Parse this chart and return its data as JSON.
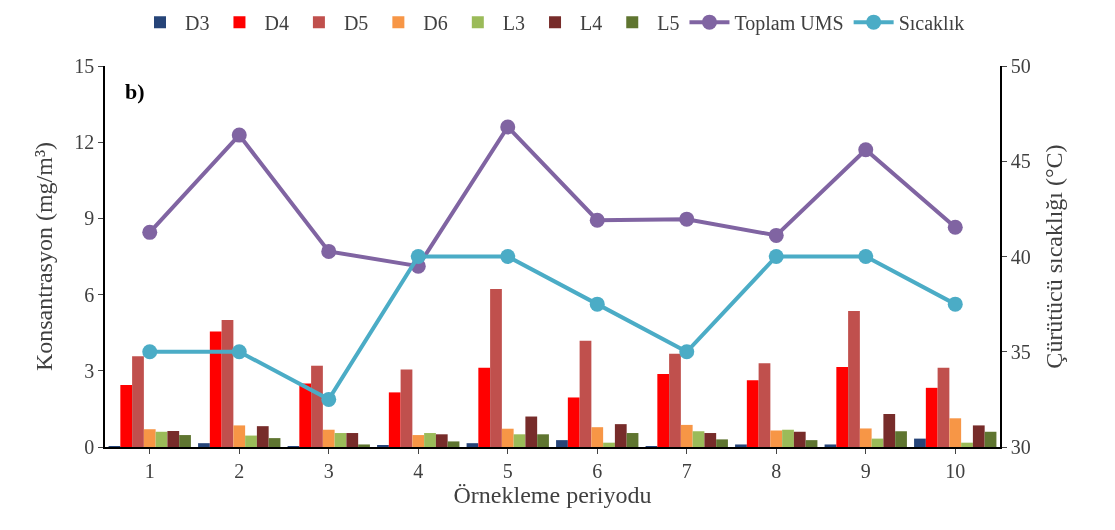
{
  "chart_data": {
    "type": "bar",
    "xlabel": "Örnekleme periyodu",
    "ylabel": "Konsantrasyon (mg/m³)",
    "y2label": "Çürütücü sıcaklığı (°C)",
    "annotations": [
      "b)"
    ],
    "categories": [
      "1",
      "2",
      "3",
      "4",
      "5",
      "6",
      "7",
      "8",
      "9",
      "10"
    ],
    "ylim": [
      0,
      15
    ],
    "yticks": [
      0,
      3,
      6,
      9,
      12,
      15
    ],
    "y2lim": [
      30,
      50
    ],
    "y2ticks": [
      30,
      35,
      40,
      45,
      50
    ],
    "legend": "top",
    "marker": "circle",
    "series": [
      {
        "name": "D3",
        "color": "#264478",
        "values": [
          0.02,
          0.15,
          0.02,
          0.06,
          0.15,
          0.27,
          0.01,
          0.1,
          0.1,
          0.33
        ]
      },
      {
        "name": "D4",
        "color": "#ff0000",
        "values": [
          2.44,
          4.55,
          2.5,
          2.15,
          3.12,
          1.95,
          2.87,
          2.63,
          3.15,
          2.33
        ]
      },
      {
        "name": "D5",
        "color": "#c0504d",
        "values": [
          3.57,
          5.0,
          3.2,
          3.05,
          6.22,
          4.18,
          3.67,
          3.3,
          5.35,
          3.12
        ]
      },
      {
        "name": "D6",
        "color": "#f79646",
        "values": [
          0.7,
          0.85,
          0.68,
          0.47,
          0.72,
          0.78,
          0.87,
          0.65,
          0.73,
          1.13
        ]
      },
      {
        "name": "L3",
        "color": "#9bbb59",
        "values": [
          0.6,
          0.45,
          0.55,
          0.55,
          0.5,
          0.17,
          0.62,
          0.68,
          0.33,
          0.17
        ]
      },
      {
        "name": "L4",
        "color": "#772c2a",
        "values": [
          0.63,
          0.82,
          0.55,
          0.5,
          1.2,
          0.9,
          0.55,
          0.6,
          1.3,
          0.85
        ]
      },
      {
        "name": "L5",
        "color": "#5f7530",
        "values": [
          0.47,
          0.35,
          0.1,
          0.22,
          0.5,
          0.55,
          0.3,
          0.27,
          0.62,
          0.6
        ]
      },
      {
        "name": "Toplam UMS",
        "type": "line",
        "color": "#8064a2",
        "values": [
          8.45,
          12.28,
          7.7,
          7.12,
          12.6,
          8.93,
          8.97,
          8.33,
          11.7,
          8.65
        ]
      },
      {
        "name": "Sıcaklık",
        "type": "line",
        "axis": "y2",
        "color": "#4bacc6",
        "values": [
          35,
          35,
          32.5,
          40,
          40,
          37.5,
          35,
          40,
          40,
          37.5
        ]
      }
    ]
  }
}
